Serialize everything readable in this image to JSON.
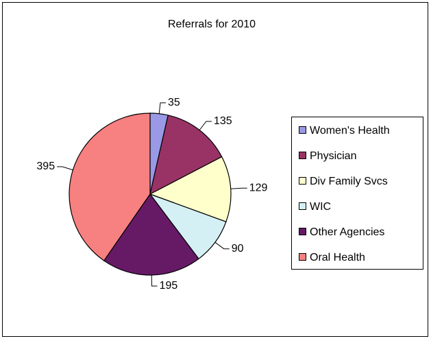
{
  "chart_data": {
    "type": "pie",
    "title": "Referrals for 2010",
    "categories": [
      "Women's Health",
      "Physician",
      "Div Family Svcs",
      "WIC",
      "Other Agencies",
      "Oral Health"
    ],
    "values": [
      35,
      135,
      129,
      90,
      195,
      395
    ],
    "colors": [
      "#9999e6",
      "#993366",
      "#ffffcc",
      "#d4f0f4",
      "#661a66",
      "#f78080"
    ],
    "legend": "right"
  }
}
